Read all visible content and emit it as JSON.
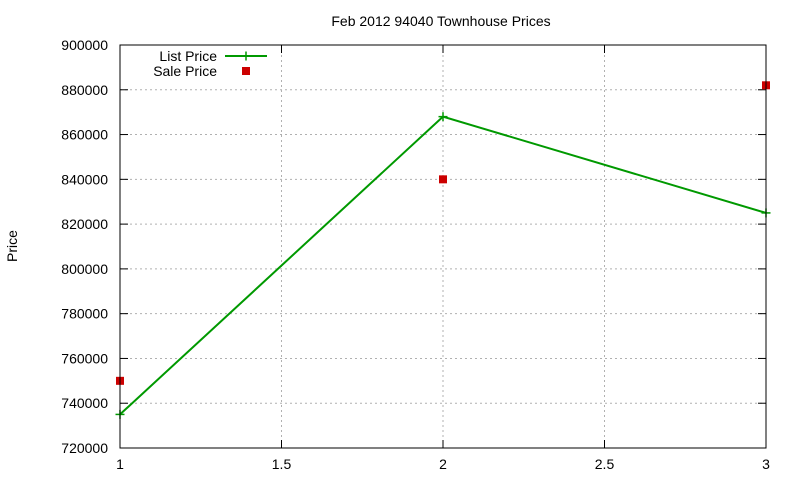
{
  "chart_data": {
    "type": "line",
    "title": "Feb 2012 94040 Townhouse Prices",
    "xlabel": "",
    "ylabel": "Price",
    "xlim": [
      1,
      3
    ],
    "ylim": [
      720000,
      900000
    ],
    "x_ticks": [
      1,
      1.5,
      2,
      2.5,
      3
    ],
    "x_tick_labels": [
      "1",
      "1.5",
      "2",
      "2.5",
      "3"
    ],
    "y_ticks": [
      720000,
      740000,
      760000,
      780000,
      800000,
      820000,
      840000,
      860000,
      880000,
      900000
    ],
    "y_tick_labels": [
      "720000",
      "740000",
      "760000",
      "780000",
      "800000",
      "820000",
      "840000",
      "860000",
      "880000",
      "900000"
    ],
    "grid": true,
    "legend_position": "top-left",
    "series": [
      {
        "name": "List Price",
        "style": "linespoints",
        "color": "#009900",
        "marker": "plus",
        "x": [
          1,
          2,
          3
        ],
        "y": [
          735000,
          868000,
          825000
        ]
      },
      {
        "name": "Sale Price",
        "style": "points",
        "color": "#cc0000",
        "marker": "square",
        "x": [
          1,
          2,
          3
        ],
        "y": [
          750000,
          840000,
          882000
        ]
      }
    ]
  }
}
